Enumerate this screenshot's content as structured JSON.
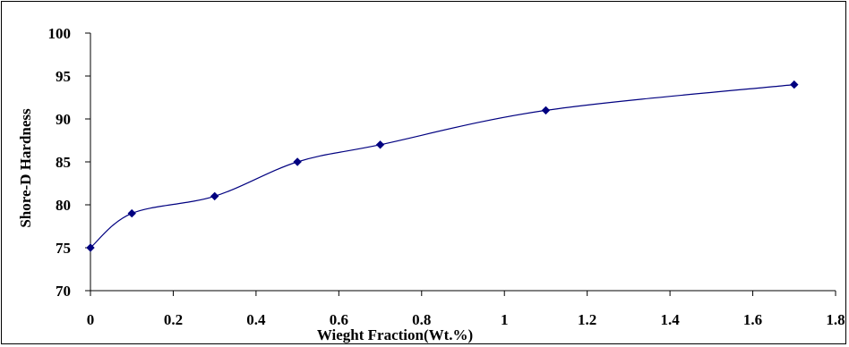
{
  "chart_data": {
    "type": "line",
    "title": "",
    "xlabel": "Wieght Fraction(Wt.%)",
    "ylabel": "Shore-D Hardness",
    "xlim": [
      0,
      1.8
    ],
    "ylim": [
      70,
      100
    ],
    "xticks": [
      0,
      0.2,
      0.4,
      0.6,
      0.8,
      1,
      1.2,
      1.4,
      1.6,
      1.8
    ],
    "xtick_labels": [
      "0",
      "0.2",
      "0.4",
      "0.6",
      "0.8",
      "1",
      "1.2",
      "1.4",
      "1.6",
      "1.8"
    ],
    "yticks": [
      70,
      75,
      80,
      85,
      90,
      95,
      100
    ],
    "ytick_labels": [
      "70",
      "75",
      "80",
      "85",
      "90",
      "95",
      "100"
    ],
    "grid": false,
    "legend": "none",
    "smooth": true,
    "series": [
      {
        "x": [
          0,
          0.1,
          0.3,
          0.5,
          0.7,
          1.1,
          1.7
        ],
        "y": [
          75,
          79,
          81,
          85,
          87,
          91,
          94
        ],
        "color": "#000080",
        "marker": "diamond"
      }
    ]
  }
}
